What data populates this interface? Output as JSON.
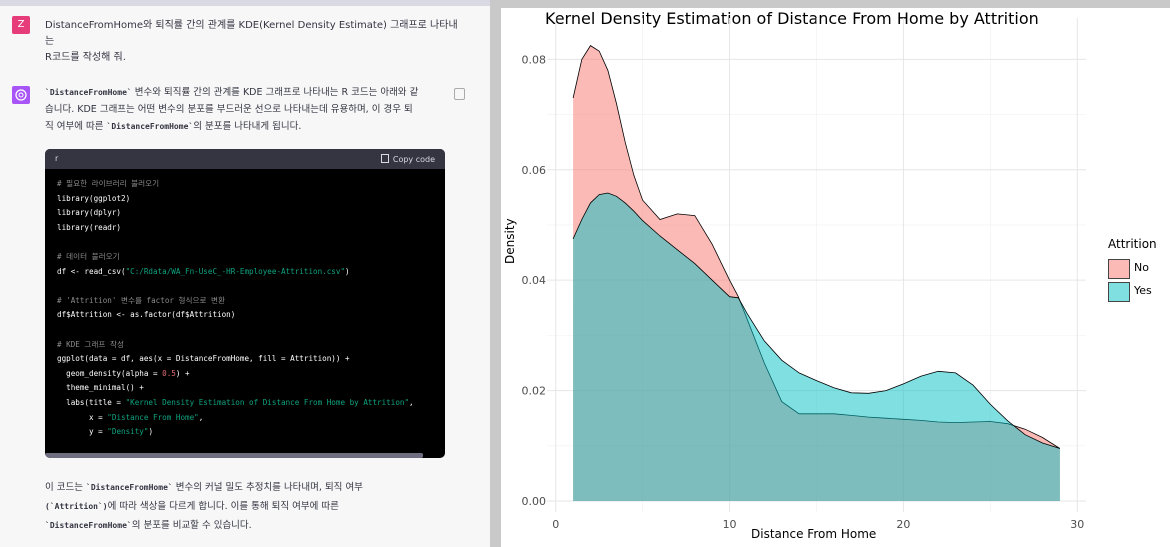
{
  "chat": {
    "user_avatar": "Z",
    "user_message_line1": "DistanceFromHome와 퇴직률 간의 관계를 KDE(Kernel Density Estimate) 그래프로 나타내는",
    "user_message_line2": "R코드를 작성해 줘.",
    "assistant_intro_line1_code": "`DistanceFromHome`",
    "assistant_intro_line1_rest": " 변수와 퇴직률 간의 관계를 KDE 그래프로 나타내는 R 코드는 아래와 같",
    "assistant_intro_line2": "습니다. KDE 그래프는 어떤 변수의 분포를 부드러운 선으로 나타내는데 유용하며, 이 경우 퇴",
    "assistant_intro_line3_pre": "직 여부에 따른 ",
    "assistant_intro_line3_code": "`DistanceFromHome`",
    "assistant_intro_line3_post": "의 분포를 나타내게 됩니다.",
    "code_lang": "r",
    "copy_code_label": "Copy code",
    "code_lines": [
      {
        "kind": "com",
        "text": "# 필요한 라이브러리 불러오기"
      },
      {
        "kind": "plain",
        "text": "library(ggplot2)"
      },
      {
        "kind": "plain",
        "text": "library(dplyr)"
      },
      {
        "kind": "plain",
        "text": "library(readr)"
      },
      {
        "kind": "blank",
        "text": " "
      },
      {
        "kind": "com",
        "text": "# 데이터 불러오기"
      },
      {
        "kind": "str",
        "pre": "df <- read_csv(",
        "str": "\"C:/Rdata/WA_Fn-UseC_-HR-Employee-Attrition.csv\"",
        "post": ")"
      },
      {
        "kind": "blank",
        "text": " "
      },
      {
        "kind": "com",
        "text": "# 'Attrition' 변수를 factor 형식으로 변환"
      },
      {
        "kind": "plain",
        "text": "df$Attrition <- as.factor(df$Attrition)"
      },
      {
        "kind": "blank",
        "text": " "
      },
      {
        "kind": "com",
        "text": "# KDE 그래프 작성"
      },
      {
        "kind": "plain",
        "text": "ggplot(data = df, aes(x = DistanceFromHome, fill = Attrition)) +"
      },
      {
        "kind": "num",
        "pre": "  geom_density(alpha = ",
        "num": "0.5",
        "post": ") +"
      },
      {
        "kind": "plain",
        "text": "  theme_minimal() +"
      },
      {
        "kind": "str",
        "pre": "  labs(title = ",
        "str": "\"Kernel Density Estimation of Distance From Home by Attrition\"",
        "post": ","
      },
      {
        "kind": "str",
        "pre": "       x = ",
        "str": "\"Distance From Home\"",
        "post": ","
      },
      {
        "kind": "str",
        "pre": "       y = ",
        "str": "\"Density\"",
        "post": ")"
      }
    ],
    "outro_line1_pre": "이 코드는 ",
    "outro_line1_code": "`DistanceFromHome`",
    "outro_line1_post": " 변수의 커널 밀도 추정치를 나타내며, 퇴직 여부",
    "outro_line2_code": "(`Attrition`)",
    "outro_line2_post": "에 따라 색상을 다르게 합니다. 이를 통해 퇴직 여부에 따른",
    "outro_line3_code": "`DistanceFromHome`",
    "outro_line3_post": "의 분포를 비교할 수 있습니다."
  },
  "chart_data": {
    "type": "area",
    "title": "Kernel Density Estimation of Distance From Home by Attrition",
    "xlabel": "Distance From Home",
    "ylabel": "Density",
    "xlim": [
      -0.5,
      30.5
    ],
    "ylim": [
      -0.002,
      0.0875
    ],
    "x_ticks": [
      "0",
      "10",
      "20",
      "30"
    ],
    "y_ticks": [
      "0.00",
      "0.02",
      "0.04",
      "0.06",
      "0.08"
    ],
    "grid": true,
    "legend_title": "Attrition",
    "legend_position": "right",
    "series": [
      {
        "name": "No",
        "color": "#F8766D",
        "x": [
          1,
          1.5,
          2,
          2.5,
          3,
          3.5,
          4,
          4.5,
          5,
          6,
          7,
          8,
          9,
          10,
          10.5,
          11,
          12,
          13,
          14,
          15,
          16,
          17,
          18,
          19,
          20,
          21,
          22,
          23,
          24,
          25,
          26,
          27,
          28,
          29
        ],
        "y": [
          0.073,
          0.08,
          0.0825,
          0.0815,
          0.078,
          0.072,
          0.065,
          0.059,
          0.0545,
          0.051,
          0.052,
          0.0517,
          0.0465,
          0.04,
          0.037,
          0.033,
          0.025,
          0.018,
          0.0158,
          0.0158,
          0.0158,
          0.0155,
          0.0152,
          0.015,
          0.0148,
          0.0146,
          0.0143,
          0.0142,
          0.0143,
          0.0144,
          0.014,
          0.013,
          0.0115,
          0.0095
        ]
      },
      {
        "name": "Yes",
        "color": "#00BFC4",
        "x": [
          1,
          1.5,
          2,
          2.5,
          3,
          3.5,
          4,
          4.5,
          5,
          6,
          7,
          8,
          9,
          10,
          10.5,
          11,
          12,
          13,
          14,
          15,
          16,
          17,
          18,
          19,
          20,
          21,
          22,
          23,
          24,
          25,
          26,
          27,
          28,
          29
        ],
        "y": [
          0.0475,
          0.051,
          0.054,
          0.0555,
          0.0558,
          0.0552,
          0.054,
          0.0525,
          0.0508,
          0.048,
          0.0455,
          0.043,
          0.04,
          0.037,
          0.0368,
          0.034,
          0.029,
          0.0255,
          0.0232,
          0.0218,
          0.0205,
          0.0196,
          0.0195,
          0.02,
          0.0212,
          0.0226,
          0.0235,
          0.0232,
          0.021,
          0.0175,
          0.0145,
          0.012,
          0.0105,
          0.0095
        ]
      }
    ]
  }
}
